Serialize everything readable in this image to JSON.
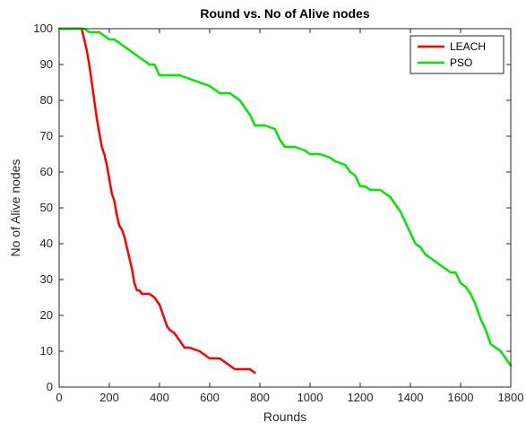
{
  "chart_data": {
    "type": "line",
    "title": "Round vs. No of Alive nodes",
    "xlabel": "Rounds",
    "ylabel": "No of Alive nodes",
    "xlim": [
      0,
      1800
    ],
    "ylim": [
      0,
      100
    ],
    "xticks": [
      0,
      200,
      400,
      600,
      800,
      1000,
      1200,
      1400,
      1600,
      1800
    ],
    "yticks": [
      0,
      10,
      20,
      30,
      40,
      50,
      60,
      70,
      80,
      90,
      100
    ],
    "grid": false,
    "legend_position": "top-right",
    "series": [
      {
        "name": "LEACH",
        "color": "#ff0000",
        "x": [
          0,
          90,
          100,
          110,
          120,
          130,
          140,
          150,
          160,
          170,
          180,
          190,
          200,
          210,
          220,
          230,
          240,
          250,
          260,
          270,
          280,
          290,
          300,
          310,
          320,
          330,
          340,
          350,
          360,
          380,
          400,
          410,
          420,
          430,
          440,
          460,
          480,
          500,
          520,
          560,
          580,
          600,
          640,
          660,
          680,
          700,
          740,
          760,
          780
        ],
        "y": [
          100,
          100,
          97,
          94,
          90,
          85,
          80,
          75,
          71,
          67,
          65,
          62,
          58,
          54,
          52,
          48,
          45,
          44,
          42,
          39,
          36,
          33,
          29,
          27,
          27,
          26,
          26,
          26,
          26,
          25,
          23,
          21,
          19,
          17,
          16,
          15,
          13,
          11,
          11,
          10,
          9,
          8,
          8,
          7,
          6,
          5,
          5,
          5,
          4
        ]
      },
      {
        "name": "PSO",
        "color": "#00e600",
        "x": [
          0,
          100,
          120,
          140,
          160,
          180,
          200,
          220,
          240,
          260,
          280,
          300,
          320,
          340,
          360,
          380,
          400,
          440,
          480,
          520,
          560,
          600,
          640,
          680,
          700,
          720,
          740,
          760,
          780,
          820,
          860,
          880,
          900,
          940,
          980,
          1000,
          1040,
          1080,
          1100,
          1140,
          1160,
          1180,
          1200,
          1220,
          1240,
          1280,
          1300,
          1320,
          1340,
          1360,
          1380,
          1400,
          1420,
          1440,
          1460,
          1480,
          1500,
          1520,
          1540,
          1560,
          1580,
          1600,
          1620,
          1640,
          1660,
          1680,
          1700,
          1720,
          1740,
          1760,
          1780,
          1800
        ],
        "y": [
          100,
          100,
          99,
          99,
          99,
          98,
          97,
          97,
          96,
          95,
          94,
          93,
          92,
          91,
          90,
          90,
          87,
          87,
          87,
          86,
          85,
          84,
          82,
          82,
          81,
          80,
          78,
          76,
          73,
          73,
          72,
          69,
          67,
          67,
          66,
          65,
          65,
          64,
          63,
          62,
          60,
          59,
          56,
          56,
          55,
          55,
          54,
          53,
          51,
          49,
          46,
          43,
          40,
          39,
          37,
          36,
          35,
          34,
          33,
          32,
          32,
          29,
          28,
          26,
          23,
          19,
          16,
          12,
          11,
          10,
          8,
          6
        ]
      }
    ]
  }
}
